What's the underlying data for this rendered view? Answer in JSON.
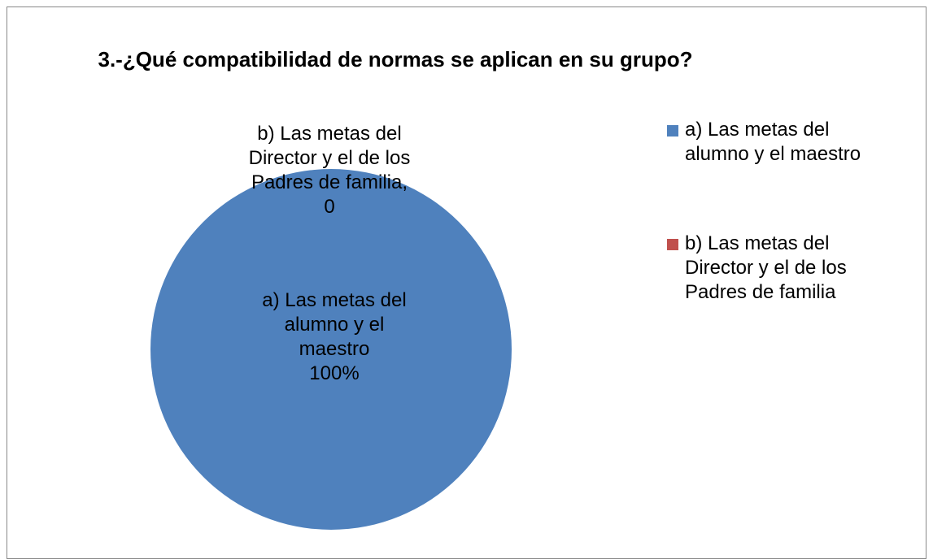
{
  "chart_data": {
    "type": "pie",
    "title": "3.-¿Qué compatibilidad de normas se aplican en su grupo?",
    "categories": [
      "a) Las metas del alumno y el maestro",
      "b) Las metas del Director y el de los Padres de familia"
    ],
    "values": [
      100,
      0
    ],
    "value_labels": [
      "100%",
      "0"
    ],
    "colors": [
      "#4f81bd",
      "#c0504d"
    ],
    "legend": "right"
  }
}
